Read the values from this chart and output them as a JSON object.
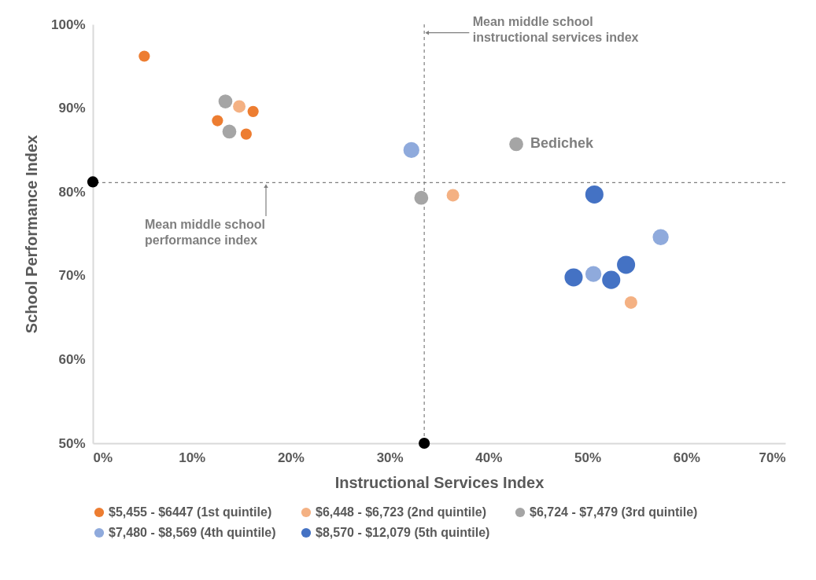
{
  "chart_data": {
    "type": "bubble",
    "xlabel": "Instructional Services Index",
    "ylabel": "School Performance Index",
    "xlim": [
      0,
      70
    ],
    "ylim": [
      50,
      100
    ],
    "xticks": [
      {
        "value": 0,
        "label": "0%"
      },
      {
        "value": 10,
        "label": "10%"
      },
      {
        "value": 20,
        "label": "20%"
      },
      {
        "value": 30,
        "label": "30%"
      },
      {
        "value": 40,
        "label": "40%"
      },
      {
        "value": 50,
        "label": "50%"
      },
      {
        "value": 60,
        "label": "60%"
      },
      {
        "value": 70,
        "label": "70%"
      }
    ],
    "yticks": [
      {
        "value": 50,
        "label": "50%"
      },
      {
        "value": 60,
        "label": "60%"
      },
      {
        "value": 70,
        "label": "70%"
      },
      {
        "value": 80,
        "label": "80%"
      },
      {
        "value": 90,
        "label": "90%"
      },
      {
        "value": 100,
        "label": "100%"
      }
    ],
    "grid": false,
    "legend": "bottom",
    "series": [
      {
        "name": "$5,455 - $6447 (1st quintile)",
        "color": "#ed7d31",
        "x": [
          5.2,
          12.6,
          16.2,
          15.5
        ],
        "values": [
          96.2,
          88.5,
          89.6,
          86.9
        ],
        "sizes": [
          0.38,
          0.38,
          0.38,
          0.38
        ]
      },
      {
        "name": "$6,448 - $6,723 (2nd quintile)",
        "color": "#f4b183",
        "x": [
          14.8,
          36.4,
          54.4
        ],
        "values": [
          90.2,
          79.6,
          66.8
        ],
        "sizes": [
          0.48,
          0.48,
          0.48
        ]
      },
      {
        "name": "$6,724 - $7,479 (3rd quintile)",
        "color": "#a5a5a5",
        "x": [
          13.4,
          13.8,
          33.2,
          42.8
        ],
        "values": [
          90.8,
          87.2,
          79.3,
          85.7
        ],
        "sizes": [
          0.59,
          0.59,
          0.59,
          0.59
        ]
      },
      {
        "name": "$7,480 - $8,569 (4th quintile)",
        "color": "#8faadc",
        "x": [
          32.2,
          50.6,
          57.4
        ],
        "values": [
          85.0,
          70.2,
          74.6
        ],
        "sizes": [
          0.78,
          0.78,
          0.78
        ]
      },
      {
        "name": "$8,570 - $12,079 (5th quintile)",
        "color": "#4472c4",
        "x": [
          50.7,
          48.6,
          52.4,
          53.9
        ],
        "values": [
          79.7,
          69.8,
          69.5,
          71.3
        ],
        "sizes": [
          1,
          1,
          1,
          1
        ]
      },
      {
        "color": "#000000",
        "x": [
          0,
          33.5
        ],
        "values": [
          81.2,
          50
        ],
        "sizes": [
          0.38,
          0.38
        ]
      }
    ],
    "ref_lines": [
      {
        "axis": "x",
        "value": 33.5,
        "label": "Mean middle school instructional services index",
        "color": "#7f7f7f",
        "line_style": "dashed"
      },
      {
        "axis": "y",
        "value": 81.1,
        "label": "Mean middle school performance index",
        "color": "#7f7f7f",
        "line_style": "dashed"
      }
    ],
    "annotations": [
      {
        "text": "Bedichek",
        "x": 42.8,
        "y": 85.7
      }
    ]
  }
}
